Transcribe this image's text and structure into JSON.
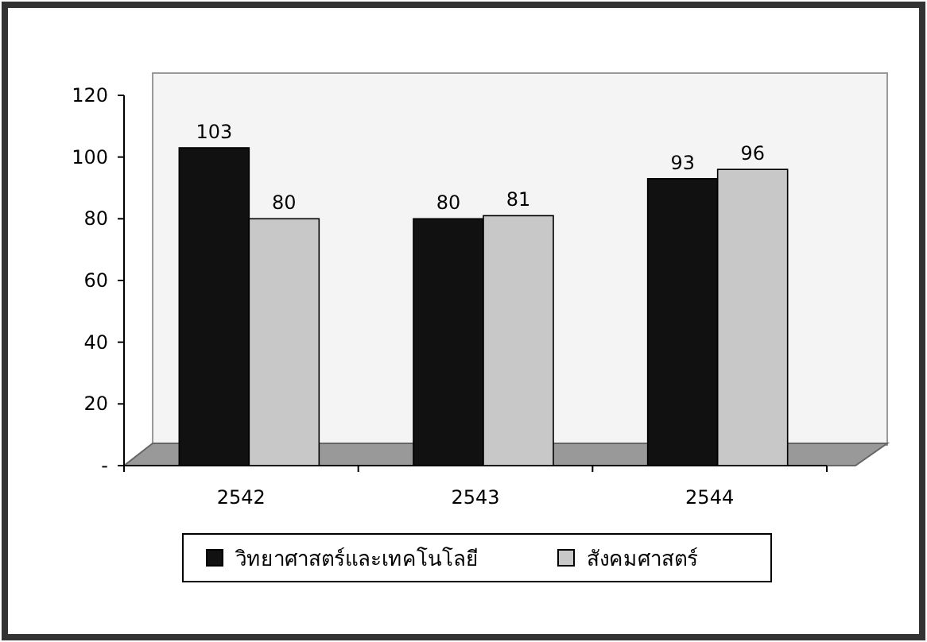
{
  "chart_data": {
    "type": "bar",
    "categories": [
      "2542",
      "2543",
      "2544"
    ],
    "series": [
      {
        "name": "วิทยาศาสตร์และเทคโนโลยี",
        "color": "#111111",
        "values": [
          103,
          80,
          93
        ]
      },
      {
        "name": "สังคมศาสตร์",
        "color": "#c8c8c8",
        "values": [
          80,
          81,
          96
        ]
      }
    ],
    "ylim": [
      0,
      120
    ],
    "yticks": [
      {
        "value": 0,
        "label": "-"
      },
      20,
      40,
      60,
      80,
      100,
      120
    ],
    "data_labels": true,
    "legend": "bottom"
  }
}
